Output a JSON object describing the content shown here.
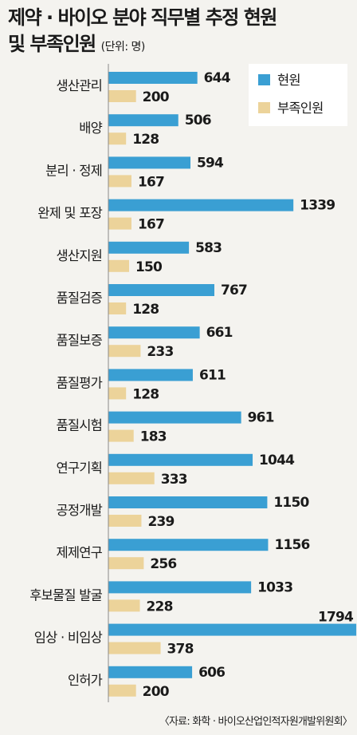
{
  "title_line1": "제약 · 바이오 분야 직무별 추정 현원",
  "title_line2": "및 부족인원",
  "unit": "(단위: 명)",
  "source": "〈자료: 화학 · 바이오산업인적자원개발위원회〉",
  "colors": {
    "current": "#3a9fd3",
    "shortage": "#ecd39a",
    "background": "#f4f3ef"
  },
  "chart_data": {
    "type": "bar",
    "orientation": "horizontal",
    "categories": [
      "생산관리",
      "배양",
      "분리 · 정제",
      "완제 및 포장",
      "생산지원",
      "품질검증",
      "품질보증",
      "품질평가",
      "품질시험",
      "연구기획",
      "공정개발",
      "제제연구",
      "후보물질 발굴",
      "임상 · 비임상",
      "인허가"
    ],
    "series": [
      {
        "name": "현원",
        "values": [
          644,
          506,
          594,
          1339,
          583,
          767,
          661,
          611,
          961,
          1044,
          1150,
          1156,
          1033,
          1794,
          606
        ]
      },
      {
        "name": "부족인원",
        "values": [
          200,
          128,
          167,
          167,
          150,
          128,
          233,
          128,
          183,
          333,
          239,
          256,
          228,
          378,
          200
        ]
      }
    ],
    "legend": [
      "현원",
      "부족인원"
    ],
    "legend_position": "top-right",
    "grid": false
  }
}
